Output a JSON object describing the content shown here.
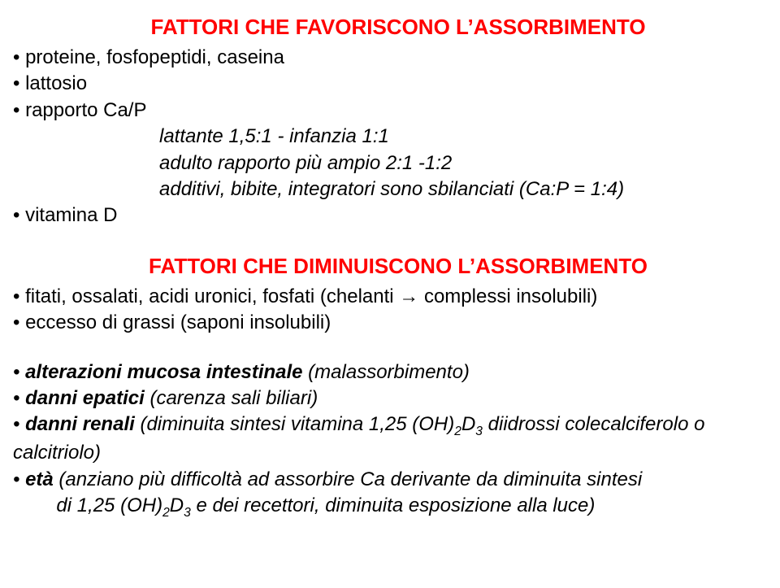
{
  "colors": {
    "title": "#ff0000",
    "body": "#000000",
    "background": "#ffffff"
  },
  "typography": {
    "title_fontsize": 26,
    "body_fontsize": 24,
    "title_weight": "bold",
    "font_family": "Arial"
  },
  "section1": {
    "title": "FATTORI CHE FAVORISCONO L’ASSORBIMENTO",
    "b1": "• proteine, fosfopeptidi, caseina",
    "b2": "• lattosio",
    "b3": "• rapporto Ca/P",
    "b3a": "lattante 1,5:1 - infanzia 1:1",
    "b3b": "adulto rapporto più ampio 2:1 -1:2",
    "b3c": "additivi, bibite, integratori sono sbilanciati (Ca:P = 1:4)",
    "b4": "• vitamina D"
  },
  "section2": {
    "title": "FATTORI CHE DIMINUISCONO L’ASSORBIMENTO",
    "b1_pre": "• fitati, ossalati, acidi uronici, fosfati (chelanti ",
    "b1_post": " complessi insolubili)",
    "arrow": "→",
    "b2": "• eccesso di grassi (saponi insolubili)"
  },
  "section3": {
    "b1_pre": "• ",
    "b1_bold": "alterazioni mucosa intestinale",
    "b1_post": " (malassorbimento)",
    "b2_pre": "• ",
    "b2_bold": "danni epatici",
    "b2_post": " (carenza sali biliari)",
    "b3_pre": "• ",
    "b3_bold": "danni renali",
    "b3_post_a": " (diminuita sintesi vitamina 1,25 (OH)",
    "b3_sub1": "2",
    "b3_mid": "D",
    "b3_sub2": "3",
    "b3_post_b": "  diidrossi colecalciferolo o calcitriolo)",
    "b4_pre": "• ",
    "b4_bold": "età",
    "b4_post_a": " (anziano più difficoltà ad assorbire Ca derivante da diminuita sintesi",
    "b4_line2_a": "        di 1,25 (OH)",
    "b4_sub1": "2",
    "b4_mid": "D",
    "b4_sub2": "3",
    "b4_line2_b": " e dei recettori, diminuita esposizione alla luce)"
  }
}
